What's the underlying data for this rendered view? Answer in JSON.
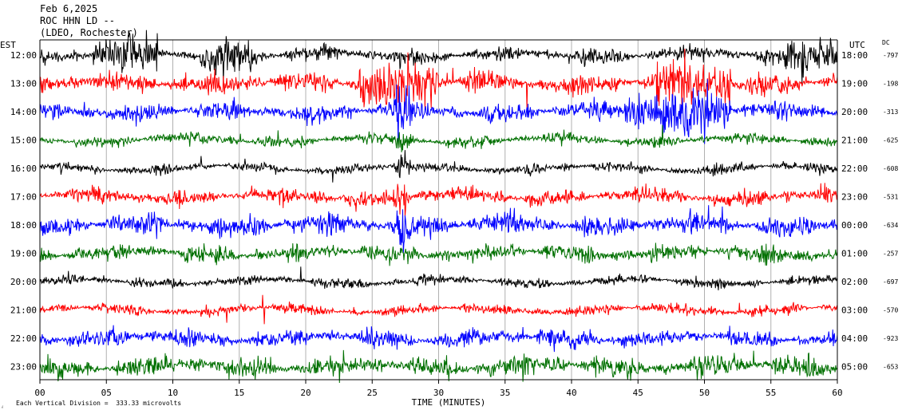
{
  "header": {
    "date": "Feb 6,2025",
    "station": "ROC HHN LD --",
    "network": "(LDEO, Rochester)"
  },
  "chart_data": {
    "type": "line",
    "title": "",
    "xlabel": "TIME (MINUTES)",
    "left_axis_label": "EST",
    "right_axis_label": "UTC",
    "dc_label": "DC",
    "xlim": [
      0,
      60
    ],
    "x_ticks": [
      "00",
      "05",
      "10",
      "15",
      "20",
      "25",
      "30",
      "35",
      "40",
      "45",
      "50",
      "55",
      "60"
    ],
    "grid": "vertical every 5 minutes",
    "footnote": "Each Vertical Division =  333.33 microvolts",
    "colors": [
      "#000000",
      "#ff0000",
      "#0000ff",
      "#007000"
    ],
    "rows": [
      {
        "est": "12:00",
        "utc": "18:00",
        "dc": "-797"
      },
      {
        "est": "13:00",
        "utc": "19:00",
        "dc": "-198"
      },
      {
        "est": "14:00",
        "utc": "20:00",
        "dc": "-313"
      },
      {
        "est": "15:00",
        "utc": "21:00",
        "dc": "-625"
      },
      {
        "est": "16:00",
        "utc": "22:00",
        "dc": "-608"
      },
      {
        "est": "17:00",
        "utc": "23:00",
        "dc": "-531"
      },
      {
        "est": "18:00",
        "utc": "00:00",
        "dc": "-634"
      },
      {
        "est": "19:00",
        "utc": "01:00",
        "dc": "-257"
      },
      {
        "est": "20:00",
        "utc": "02:00",
        "dc": "-697"
      },
      {
        "est": "21:00",
        "utc": "03:00",
        "dc": "-570"
      },
      {
        "est": "22:00",
        "utc": "04:00",
        "dc": "-923"
      },
      {
        "est": "23:00",
        "utc": "05:00",
        "dc": "-653"
      }
    ]
  }
}
